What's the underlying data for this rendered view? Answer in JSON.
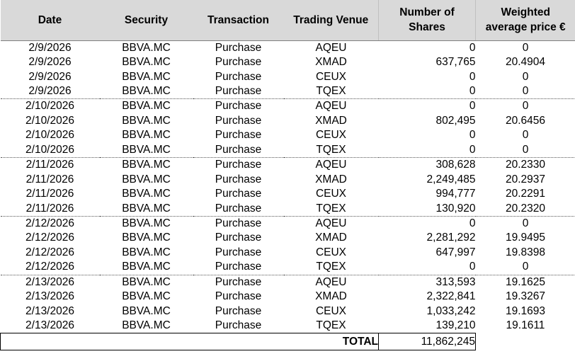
{
  "headers": {
    "date": "Date",
    "security": "Security",
    "transaction": "Transaction",
    "venue": "Trading Venue",
    "shares_line1": "Number of",
    "shares_line2": "Shares",
    "price_line1": "Weighted",
    "price_line2": "average price €"
  },
  "rows": [
    {
      "date": "2/9/2026",
      "security": "BBVA.MC",
      "transaction": "Purchase",
      "venue": "AQEU",
      "shares": "0",
      "price": "0"
    },
    {
      "date": "2/9/2026",
      "security": "BBVA.MC",
      "transaction": "Purchase",
      "venue": "XMAD",
      "shares": "637,765",
      "price": "20.4904"
    },
    {
      "date": "2/9/2026",
      "security": "BBVA.MC",
      "transaction": "Purchase",
      "venue": "CEUX",
      "shares": "0",
      "price": "0"
    },
    {
      "date": "2/9/2026",
      "security": "BBVA.MC",
      "transaction": "Purchase",
      "venue": "TQEX",
      "shares": "0",
      "price": "0"
    },
    {
      "date": "2/10/2026",
      "security": "BBVA.MC",
      "transaction": "Purchase",
      "venue": "AQEU",
      "shares": "0",
      "price": "0"
    },
    {
      "date": "2/10/2026",
      "security": "BBVA.MC",
      "transaction": "Purchase",
      "venue": "XMAD",
      "shares": "802,495",
      "price": "20.6456"
    },
    {
      "date": "2/10/2026",
      "security": "BBVA.MC",
      "transaction": "Purchase",
      "venue": "CEUX",
      "shares": "0",
      "price": "0"
    },
    {
      "date": "2/10/2026",
      "security": "BBVA.MC",
      "transaction": "Purchase",
      "venue": "TQEX",
      "shares": "0",
      "price": "0"
    },
    {
      "date": "2/11/2026",
      "security": "BBVA.MC",
      "transaction": "Purchase",
      "venue": "AQEU",
      "shares": "308,628",
      "price": "20.2330"
    },
    {
      "date": "2/11/2026",
      "security": "BBVA.MC",
      "transaction": "Purchase",
      "venue": "XMAD",
      "shares": "2,249,485",
      "price": "20.2937"
    },
    {
      "date": "2/11/2026",
      "security": "BBVA.MC",
      "transaction": "Purchase",
      "venue": "CEUX",
      "shares": "994,777",
      "price": "20.2291"
    },
    {
      "date": "2/11/2026",
      "security": "BBVA.MC",
      "transaction": "Purchase",
      "venue": "TQEX",
      "shares": "130,920",
      "price": "20.2320"
    },
    {
      "date": "2/12/2026",
      "security": "BBVA.MC",
      "transaction": "Purchase",
      "venue": "AQEU",
      "shares": "0",
      "price": "0"
    },
    {
      "date": "2/12/2026",
      "security": "BBVA.MC",
      "transaction": "Purchase",
      "venue": "XMAD",
      "shares": "2,281,292",
      "price": "19.9495"
    },
    {
      "date": "2/12/2026",
      "security": "BBVA.MC",
      "transaction": "Purchase",
      "venue": "CEUX",
      "shares": "647,997",
      "price": "19.8398"
    },
    {
      "date": "2/12/2026",
      "security": "BBVA.MC",
      "transaction": "Purchase",
      "venue": "TQEX",
      "shares": "0",
      "price": "0"
    },
    {
      "date": "2/13/2026",
      "security": "BBVA.MC",
      "transaction": "Purchase",
      "venue": "AQEU",
      "shares": "313,593",
      "price": "19.1625"
    },
    {
      "date": "2/13/2026",
      "security": "BBVA.MC",
      "transaction": "Purchase",
      "venue": "XMAD",
      "shares": "2,322,841",
      "price": "19.3267"
    },
    {
      "date": "2/13/2026",
      "security": "BBVA.MC",
      "transaction": "Purchase",
      "venue": "CEUX",
      "shares": "1,033,242",
      "price": "19.1693"
    },
    {
      "date": "2/13/2026",
      "security": "BBVA.MC",
      "transaction": "Purchase",
      "venue": "TQEX",
      "shares": "139,210",
      "price": "19.1611"
    }
  ],
  "total": {
    "label": "TOTAL",
    "value": "11,862,245"
  }
}
